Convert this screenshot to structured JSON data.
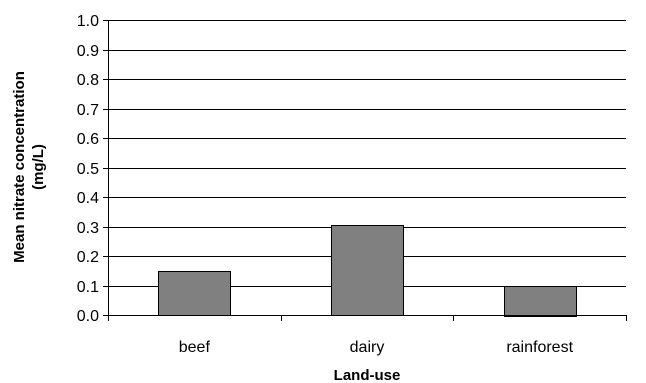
{
  "chart_data": {
    "type": "bar",
    "title": "",
    "xlabel": "Land-use",
    "ylabel_lines": [
      "Mean nitrate concentration",
      "(mg/L)"
    ],
    "categories": [
      "beef",
      "dairy",
      "rainforest"
    ],
    "values": [
      0.15,
      0.305,
      0.1
    ],
    "ylim": [
      0,
      1.0
    ],
    "yticks": [
      "0.0",
      "0.1",
      "0.2",
      "0.3",
      "0.4",
      "0.5",
      "0.6",
      "0.7",
      "0.8",
      "0.9",
      "1.0"
    ],
    "grid": true,
    "legend": "none",
    "colors": {
      "bar": "#808080",
      "bar_stroke": "#000000",
      "grid": "#000000",
      "axis": "#000000"
    }
  }
}
